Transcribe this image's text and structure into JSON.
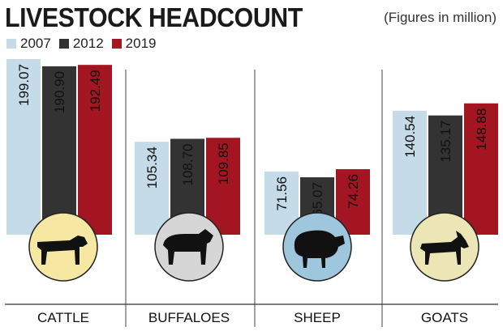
{
  "chart_data": {
    "type": "bar",
    "title": "LIVESTOCK HEADCOUNT",
    "subtitle": "(Figures in million)",
    "categories": [
      "CATTLE",
      "BUFFALOES",
      "SHEEP",
      "GOATS"
    ],
    "series": [
      {
        "name": "2007",
        "color": "#c5dbe8",
        "values": [
          199.07,
          105.34,
          71.56,
          140.54
        ]
      },
      {
        "name": "2012",
        "color": "#333333",
        "values": [
          190.9,
          108.7,
          65.07,
          135.17
        ]
      },
      {
        "name": "2019",
        "color": "#a31521",
        "values": [
          192.49,
          109.85,
          74.26,
          148.88
        ]
      }
    ],
    "value_labels": [
      [
        "199.07",
        "190.90",
        "192.49"
      ],
      [
        "105.34",
        "108.70",
        "109.85"
      ],
      [
        "71.56",
        "65.07",
        "74.26"
      ],
      [
        "140.54",
        "135.17",
        "148.88"
      ]
    ],
    "icons": [
      {
        "name": "cow-icon",
        "circle_color": "#f6e7a2"
      },
      {
        "name": "buffalo-icon",
        "circle_color": "#d6d6d6"
      },
      {
        "name": "sheep-icon",
        "circle_color": "#9ec6dc"
      },
      {
        "name": "goat-icon",
        "circle_color": "#ece5b6"
      }
    ],
    "ylim": [
      0,
      200
    ],
    "grid": false,
    "legend_position": "top-left",
    "xlabel": "",
    "ylabel": ""
  }
}
